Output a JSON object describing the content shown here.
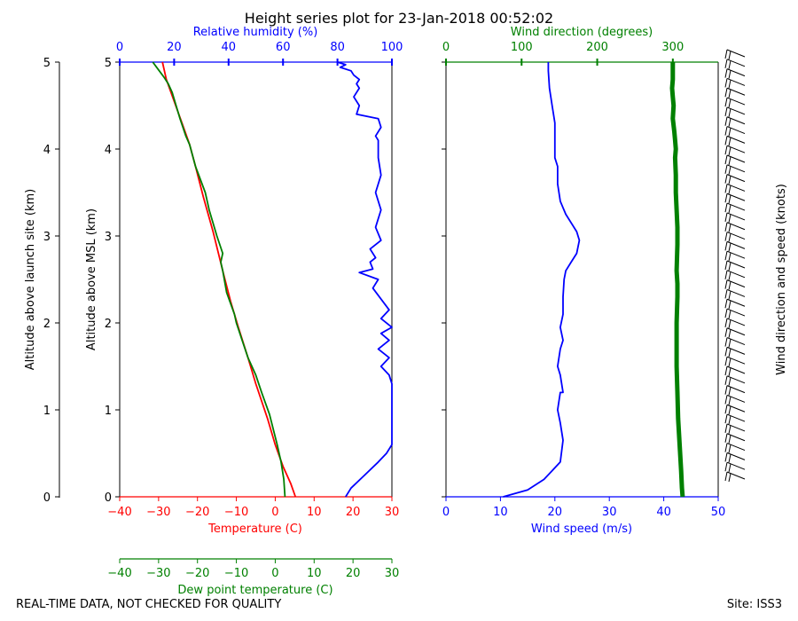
{
  "title": "Height series plot for 23-Jan-2018 00:52:02",
  "footer": {
    "quality_note": "REAL-TIME DATA, NOT CHECKED FOR QUALITY",
    "site": "Site: ISS3"
  },
  "colors": {
    "temperature": "#ff0000",
    "dewpoint": "#008000",
    "humidity": "#0000ff",
    "wind_speed": "#0000ff",
    "wind_direction": "#008000",
    "axis": "#000000"
  },
  "chart_data": [
    {
      "type": "line",
      "id": "thermo-panel",
      "ylabel_outer": "Altitude above launch site (km)",
      "ylabel_inner": "Altitude above MSL (km)",
      "ylim": [
        0,
        5
      ],
      "yticks": [
        0,
        1,
        2,
        3,
        4,
        5
      ],
      "axes": {
        "temperature": {
          "label": "Temperature (C)",
          "lim": [
            -40,
            30
          ],
          "ticks": [
            -40,
            -30,
            -20,
            -10,
            0,
            10,
            20,
            30
          ]
        },
        "dewpoint": {
          "label": "Dew point temperature (C)",
          "lim": [
            -40,
            30
          ],
          "ticks": [
            -40,
            -30,
            -20,
            -10,
            0,
            10,
            20,
            30
          ]
        },
        "humidity": {
          "label": "Relative humidity (%)",
          "lim": [
            0,
            100
          ],
          "ticks": [
            0,
            20,
            40,
            60,
            80,
            100
          ]
        }
      },
      "series": [
        {
          "name": "Temperature",
          "axis": "temperature",
          "x": [
            5.2,
            4.0,
            2.0,
            0.0,
            -2.0,
            -5.0,
            -7.0,
            -9.5,
            -11.5,
            -13.5,
            -16.0,
            -18.5,
            -20.5,
            -22.0,
            -24.0,
            -26.0,
            -28.0,
            -29.0
          ],
          "y": [
            0.0,
            0.15,
            0.35,
            0.6,
            0.9,
            1.3,
            1.6,
            1.95,
            2.25,
            2.6,
            3.05,
            3.45,
            3.8,
            4.05,
            4.3,
            4.55,
            4.8,
            5.0
          ]
        },
        {
          "name": "Dew point",
          "axis": "dewpoint",
          "x": [
            2.5,
            2.2,
            1.5,
            0.5,
            -1.5,
            -3.5,
            -5.0,
            -7.0,
            -8.5,
            -10.0,
            -10.5,
            -12.5,
            -13.5,
            -14.0,
            -13.5,
            -15.0,
            -17.0,
            -18.0,
            -20.5,
            -22.0,
            -23.0,
            -24.5,
            -25.5,
            -26.5,
            -27.5,
            -28.5,
            -29.5,
            -30.5,
            -31.5
          ],
          "y": [
            0.0,
            0.2,
            0.4,
            0.6,
            0.95,
            1.2,
            1.4,
            1.6,
            1.8,
            2.0,
            2.1,
            2.35,
            2.6,
            2.7,
            2.8,
            3.0,
            3.3,
            3.5,
            3.8,
            4.05,
            4.15,
            4.35,
            4.5,
            4.65,
            4.75,
            4.82,
            4.88,
            4.94,
            5.0
          ]
        },
        {
          "name": "Relative humidity",
          "axis": "humidity",
          "x": [
            83,
            85,
            90,
            95,
            98,
            100,
            100,
            100,
            100,
            99,
            96,
            99,
            95,
            99,
            96,
            100,
            96,
            99,
            93,
            95,
            88,
            93,
            92,
            94,
            92,
            96,
            94,
            96,
            94,
            96,
            95,
            95,
            94,
            96,
            95,
            87,
            88,
            86,
            88,
            87,
            88,
            86,
            85,
            81,
            83,
            80
          ],
          "y": [
            0.0,
            0.1,
            0.25,
            0.4,
            0.5,
            0.6,
            1.0,
            1.2,
            1.3,
            1.4,
            1.5,
            1.6,
            1.7,
            1.8,
            1.88,
            1.95,
            2.05,
            2.15,
            2.4,
            2.5,
            2.58,
            2.62,
            2.7,
            2.75,
            2.85,
            2.95,
            3.1,
            3.3,
            3.5,
            3.7,
            3.9,
            4.1,
            4.15,
            4.25,
            4.35,
            4.4,
            4.5,
            4.6,
            4.7,
            4.75,
            4.8,
            4.85,
            4.9,
            4.94,
            4.97,
            5.0
          ]
        }
      ]
    },
    {
      "type": "line",
      "id": "wind-panel",
      "ylim": [
        0,
        5
      ],
      "axes": {
        "wind_speed": {
          "label": "Wind speed (m/s)",
          "lim": [
            0,
            50
          ],
          "ticks": [
            0,
            10,
            20,
            30,
            40,
            50
          ]
        },
        "wind_direction": {
          "label": "Wind direction (degrees)",
          "lim": [
            0,
            360
          ],
          "ticks": [
            0,
            100,
            200,
            300
          ]
        }
      },
      "right_label": "Wind direction and speed (knots)",
      "series": [
        {
          "name": "Wind speed",
          "axis": "wind_speed",
          "x": [
            10.5,
            15.0,
            18.0,
            19.5,
            21.0,
            21.5,
            21.0,
            20.5,
            21.0,
            21.5,
            21.0,
            20.5,
            21.0,
            21.5,
            21.0,
            21.5,
            21.5,
            21.7,
            22.0,
            23.0,
            24.0,
            24.5,
            24.0,
            22.0,
            21.0,
            20.5,
            20.5,
            20.0,
            20.0,
            20.0,
            19.5,
            19.0,
            18.8,
            18.8
          ],
          "y": [
            0.0,
            0.08,
            0.2,
            0.3,
            0.4,
            0.65,
            0.85,
            1.0,
            1.2,
            1.2,
            1.4,
            1.5,
            1.7,
            1.8,
            1.95,
            2.1,
            2.3,
            2.5,
            2.6,
            2.7,
            2.8,
            2.95,
            3.05,
            3.25,
            3.4,
            3.6,
            3.8,
            3.9,
            4.0,
            4.3,
            4.5,
            4.7,
            4.9,
            5.0
          ]
        },
        {
          "name": "Wind direction",
          "axis": "wind_direction",
          "x": [
            313,
            312,
            311,
            309,
            307,
            306,
            305,
            305,
            305,
            306,
            306,
            305,
            306,
            306,
            305,
            304,
            304,
            303,
            304,
            303,
            302,
            300,
            301,
            300,
            299,
            300,
            300,
            300
          ],
          "y": [
            0.0,
            0.1,
            0.3,
            0.6,
            0.9,
            1.2,
            1.5,
            1.8,
            2.0,
            2.3,
            2.45,
            2.6,
            2.9,
            3.1,
            3.3,
            3.5,
            3.7,
            3.9,
            4.0,
            4.1,
            4.2,
            4.35,
            4.5,
            4.6,
            4.7,
            4.8,
            4.9,
            5.0
          ]
        }
      ],
      "barbs": {
        "count": 45,
        "direction_deg": 300,
        "speed_knots": 40
      }
    }
  ]
}
